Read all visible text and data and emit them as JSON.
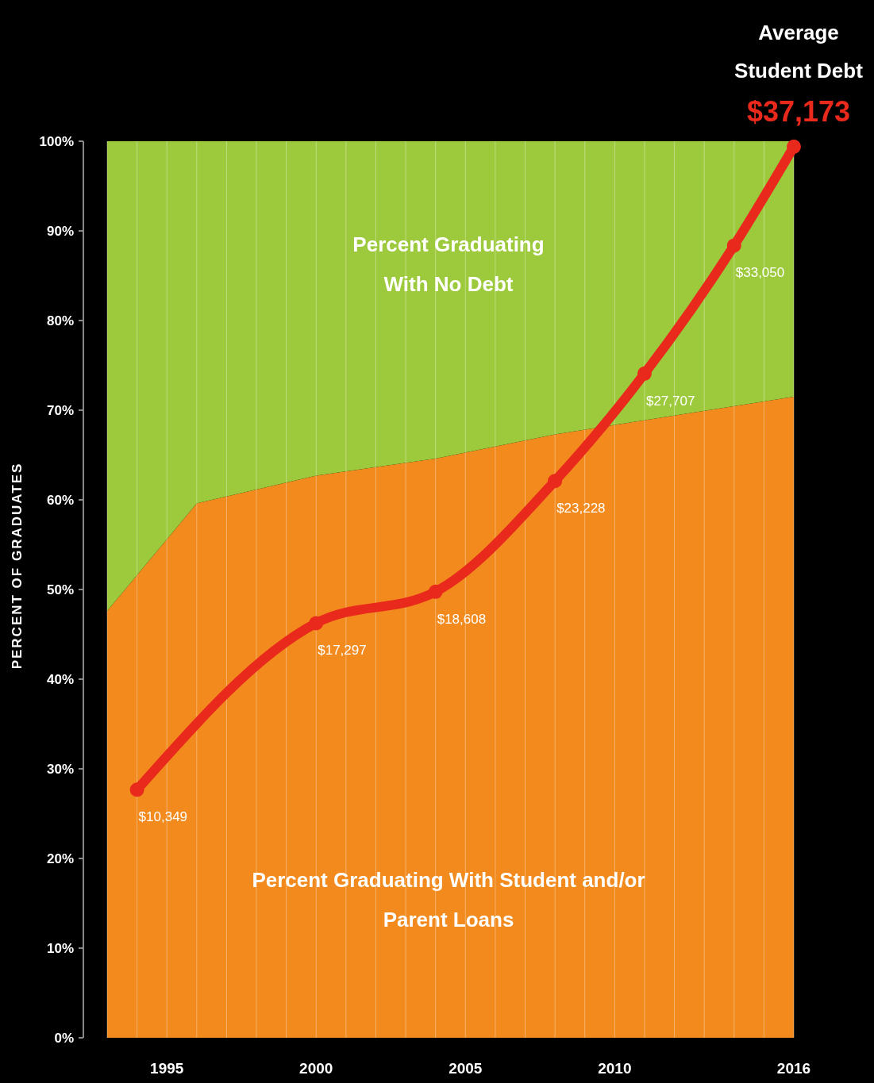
{
  "chart_data": {
    "type": "area",
    "stacked": true,
    "ylabel": "PERCENT OF GRADUATES",
    "xlim": [
      1993,
      2016
    ],
    "ylim": [
      0,
      100
    ],
    "y2lim": [
      0,
      37400
    ],
    "xticks": [
      {
        "value": 1993,
        "label": null
      },
      {
        "value": 1994,
        "label": null
      },
      1995,
      {
        "value": 1996,
        "label": null
      },
      {
        "value": 1997,
        "label": null
      },
      {
        "value": 1998,
        "label": null
      },
      {
        "value": 1999,
        "label": null
      },
      2000,
      {
        "value": 2001,
        "label": null
      },
      {
        "value": 2002,
        "label": null
      },
      {
        "value": 2003,
        "label": null
      },
      {
        "value": 2004,
        "label": null
      },
      2005,
      {
        "value": 2006,
        "label": null
      },
      {
        "value": 2007,
        "label": null
      },
      {
        "value": 2008,
        "label": null
      },
      {
        "value": 2009,
        "label": null
      },
      2010,
      {
        "value": 2011,
        "label": null
      },
      {
        "value": 2012,
        "label": null
      },
      {
        "value": 2013,
        "label": null
      },
      {
        "value": 2014,
        "label": null
      },
      {
        "value": 2015,
        "label": null
      },
      2016
    ],
    "yticks": [
      {
        "value": 0,
        "label": "0%"
      },
      {
        "value": 10,
        "label": "10%"
      },
      {
        "value": 20,
        "label": "20%"
      },
      {
        "value": 30,
        "label": "30%"
      },
      {
        "value": 40,
        "label": "40%"
      },
      {
        "value": 50,
        "label": "50%"
      },
      {
        "value": 60,
        "label": "60%"
      },
      {
        "value": 70,
        "label": "70%"
      },
      {
        "value": 80,
        "label": "80%"
      },
      {
        "value": 90,
        "label": "90%"
      },
      {
        "value": 100,
        "label": "100%"
      }
    ],
    "grid": "x",
    "tick_labels": "xy",
    "annotations": [
      "Average Student Debt"
    ],
    "series": [
      {
        "name": "Percent Graduating With Student and/or Parent Loans",
        "color": "#f28a1e",
        "x": [
          1993,
          1996,
          2000,
          2004,
          2008,
          2016
        ],
        "values": [
          47.6,
          59.6,
          62.7,
          64.6,
          67.3,
          71.5
        ]
      },
      {
        "name": "Percent Graduating With No Debt",
        "color": "#9dca3c",
        "x": [
          1993,
          1996,
          2000,
          2004,
          2008,
          2016
        ],
        "values": [
          52.4,
          40.4,
          37.3,
          35.4,
          32.7,
          28.5
        ]
      },
      {
        "type": "line",
        "axis": "y2",
        "marker": "circle",
        "color": "#e8291c",
        "x": [
          1994,
          2000,
          2004,
          2008,
          2011,
          2014,
          2016
        ],
        "values": [
          10349,
          17297,
          18608,
          23228,
          27707,
          33050,
          37173
        ],
        "value_labels": [
          "$10,349",
          "$17,297",
          "$18,608",
          "$23,228",
          "$27,707",
          "$33,050",
          "$37,173"
        ]
      }
    ]
  }
}
